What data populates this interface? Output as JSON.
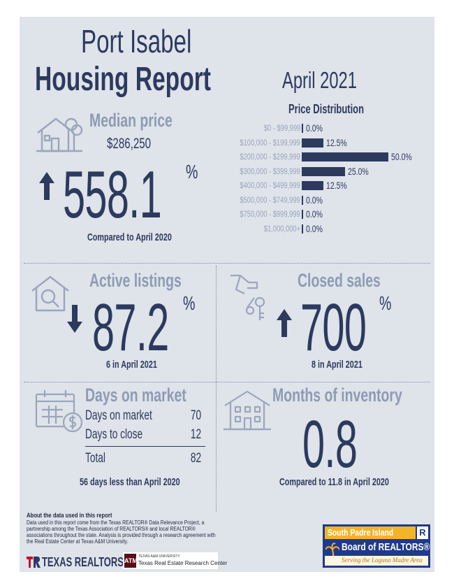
{
  "header": {
    "city": "Port Isabel",
    "report": "Housing Report",
    "month": "April 2021"
  },
  "median_price": {
    "label": "Median price",
    "value": "$286,250",
    "change": "558.1",
    "pct_sign": "%",
    "direction": "up",
    "comparison": "Compared to April 2020",
    "icon": "house-with-tree-icon"
  },
  "price_distribution": {
    "title": "Price Distribution",
    "rows": [
      {
        "range": "$0 - $99,999",
        "label": "0.0%"
      },
      {
        "range": "$100,000 - $199,999",
        "label": "12.5%"
      },
      {
        "range": "$200,000 - $299,999",
        "label": "50.0%"
      },
      {
        "range": "$300,000 - $399,999",
        "label": "25.0%"
      },
      {
        "range": "$400,000 - $499,999",
        "label": "12.5%"
      },
      {
        "range": "$500,000 - $749,999",
        "label": "0.0%"
      },
      {
        "range": "$750,000 - $999,999",
        "label": "0.0%"
      },
      {
        "range": "$1,000,000+",
        "label": "0.0%"
      }
    ]
  },
  "chart_data": {
    "type": "bar",
    "title": "Price Distribution",
    "orientation": "horizontal",
    "categories": [
      "$0 - $99,999",
      "$100,000 - $199,999",
      "$200,000 - $299,999",
      "$300,000 - $399,999",
      "$400,000 - $499,999",
      "$500,000 - $749,999",
      "$750,000 - $999,999",
      "$1,000,000+"
    ],
    "values": [
      0.0,
      12.5,
      50.0,
      25.0,
      12.5,
      0.0,
      0.0,
      0.0
    ],
    "xlim": [
      0,
      50
    ],
    "grid": false
  },
  "active_listings": {
    "label": "Active listings",
    "change": "87.2",
    "pct_sign": "%",
    "direction": "down",
    "sub": "6 in April 2021",
    "icon": "house-magnifier-icon"
  },
  "closed_sales": {
    "label": "Closed sales",
    "change": "700",
    "pct_sign": "%",
    "direction": "up",
    "sub": "8 in April 2021",
    "icon": "hand-with-keys-icon"
  },
  "days_on_market": {
    "label": "Days on market",
    "rows": [
      {
        "name": "Days on market",
        "value": "70"
      },
      {
        "name": "Days to close",
        "value": "12"
      }
    ],
    "total": {
      "name": "Total",
      "value": "82"
    },
    "sub": "56 days less than April 2020",
    "icon": "calendar-dollar-icon"
  },
  "months_inventory": {
    "label": "Months of inventory",
    "value": "0.8",
    "sub": "Compared to 11.8 in April 2020",
    "icon": "apartment-building-icon"
  },
  "footer": {
    "about_title": "About the data used in this report",
    "about_text": "Data used in this report come from the Texas REALTOR® Data Relevance Project, a partnership among the Texas Association of REALTORS® and local REALTOR® associations throughout the state. Analysis is provided through a research agreement with the Real Estate Center at Texas A&M University.",
    "texas_realtors": "TEXAS REALTORS",
    "am_mark": "ATM",
    "am_small": "TEXAS A&M UNIVERSITY",
    "am_main": "Texas Real Estate Research Center",
    "spi_top": "South Padre Island",
    "spi_r": "R",
    "spi_mid": "Board of REALTORS®",
    "spi_tagline": "Serving the Laguna Madre Area"
  },
  "colors": {
    "navy": "#2c3a5e",
    "muted": "#8d9bb3",
    "panel": "#dfe3ea"
  }
}
